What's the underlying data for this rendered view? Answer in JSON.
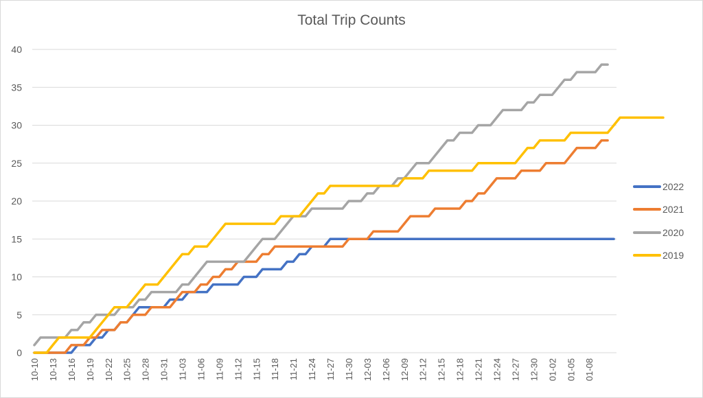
{
  "chart_data": {
    "type": "line",
    "title": "Total Trip Counts",
    "xlabel": "",
    "ylabel": "",
    "ylim": [
      0,
      40
    ],
    "yticks": [
      0,
      5,
      10,
      15,
      20,
      25,
      30,
      35,
      40
    ],
    "grid": true,
    "legend_position": "right",
    "x_tick_labels": [
      "10-10",
      "10-13",
      "10-16",
      "10-19",
      "10-22",
      "10-25",
      "10-28",
      "10-31",
      "11-03",
      "11-06",
      "11-09",
      "11-12",
      "11-15",
      "11-18",
      "11-21",
      "11-24",
      "11-27",
      "11-30",
      "12-03",
      "12-06",
      "12-09",
      "12-12",
      "12-15",
      "12-18",
      "12-21",
      "12-24",
      "12-27",
      "12-30",
      "01-02",
      "01-05",
      "01-08"
    ],
    "x_tick_interval_days": 3,
    "x_start": "10-10",
    "series": [
      {
        "name": "2022",
        "color": "#4472C4",
        "values": [
          0,
          0,
          0,
          0,
          0,
          0,
          0,
          1,
          1,
          1,
          2,
          2,
          3,
          3,
          4,
          4,
          5,
          6,
          6,
          6,
          6,
          6,
          7,
          7,
          7,
          8,
          8,
          8,
          8,
          9,
          9,
          9,
          9,
          9,
          10,
          10,
          10,
          11,
          11,
          11,
          11,
          12,
          12,
          13,
          13,
          14,
          14,
          14,
          15,
          15,
          15,
          15,
          15,
          15,
          15,
          15,
          15,
          15,
          15,
          15,
          15,
          15,
          15,
          15,
          15,
          15,
          15,
          15,
          15,
          15,
          15,
          15,
          15,
          15,
          15,
          15,
          15,
          15,
          15,
          15,
          15,
          15,
          15,
          15,
          15,
          15,
          15,
          15,
          15,
          15,
          15,
          15,
          15,
          15,
          15
        ]
      },
      {
        "name": "2021",
        "color": "#ED7D31",
        "values": [
          0,
          0,
          0,
          0,
          0,
          0,
          1,
          1,
          1,
          2,
          2,
          3,
          3,
          3,
          4,
          4,
          5,
          5,
          5,
          6,
          6,
          6,
          6,
          7,
          8,
          8,
          8,
          9,
          9,
          10,
          10,
          11,
          11,
          12,
          12,
          12,
          12,
          13,
          13,
          14,
          14,
          14,
          14,
          14,
          14,
          14,
          14,
          14,
          14,
          14,
          14,
          15,
          15,
          15,
          15,
          16,
          16,
          16,
          16,
          16,
          17,
          18,
          18,
          18,
          18,
          19,
          19,
          19,
          19,
          19,
          20,
          20,
          21,
          21,
          22,
          23,
          23,
          23,
          23,
          24,
          24,
          24,
          24,
          25,
          25,
          25,
          25,
          26,
          27,
          27,
          27,
          27,
          28,
          28
        ]
      },
      {
        "name": "2020",
        "color": "#A5A5A5",
        "values": [
          1,
          2,
          2,
          2,
          2,
          2,
          3,
          3,
          4,
          4,
          5,
          5,
          5,
          5,
          6,
          6,
          6,
          7,
          7,
          8,
          8,
          8,
          8,
          8,
          9,
          9,
          10,
          11,
          12,
          12,
          12,
          12,
          12,
          12,
          12,
          13,
          14,
          15,
          15,
          15,
          16,
          17,
          18,
          18,
          18,
          19,
          19,
          19,
          19,
          19,
          19,
          20,
          20,
          20,
          21,
          21,
          22,
          22,
          22,
          23,
          23,
          24,
          25,
          25,
          25,
          26,
          27,
          28,
          28,
          29,
          29,
          29,
          30,
          30,
          30,
          31,
          32,
          32,
          32,
          32,
          33,
          33,
          34,
          34,
          34,
          35,
          36,
          36,
          37,
          37,
          37,
          37,
          38,
          38
        ]
      },
      {
        "name": "2019",
        "color": "#FFC000",
        "values": [
          0,
          0,
          0,
          1,
          2,
          2,
          2,
          2,
          2,
          2,
          3,
          4,
          5,
          6,
          6,
          6,
          7,
          8,
          9,
          9,
          9,
          10,
          11,
          12,
          13,
          13,
          14,
          14,
          14,
          15,
          16,
          17,
          17,
          17,
          17,
          17,
          17,
          17,
          17,
          17,
          18,
          18,
          18,
          18,
          19,
          20,
          21,
          21,
          22,
          22,
          22,
          22,
          22,
          22,
          22,
          22,
          22,
          22,
          22,
          22,
          23,
          23,
          23,
          23,
          24,
          24,
          24,
          24,
          24,
          24,
          24,
          24,
          25,
          25,
          25,
          25,
          25,
          25,
          25,
          26,
          27,
          27,
          28,
          28,
          28,
          28,
          28,
          29,
          29,
          29,
          29,
          29,
          29,
          29,
          30,
          31,
          31,
          31,
          31,
          31,
          31,
          31,
          31
        ]
      }
    ]
  },
  "legend": {
    "items": [
      {
        "label": "2022",
        "color": "#4472C4"
      },
      {
        "label": "2021",
        "color": "#ED7D31"
      },
      {
        "label": "2020",
        "color": "#A5A5A5"
      },
      {
        "label": "2019",
        "color": "#FFC000"
      }
    ]
  }
}
